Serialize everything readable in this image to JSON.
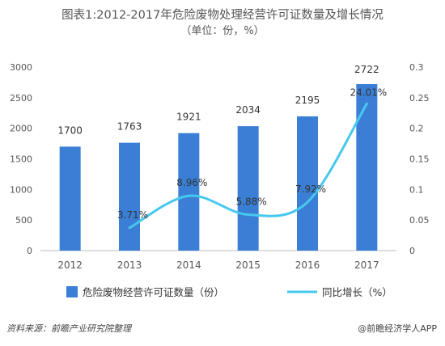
{
  "chart_data": {
    "type": "bar+line",
    "title": "图表1:2012-2017年危险废物处理经营许可证数量及增长情况",
    "subtitle": "（单位：份，%）",
    "categories": [
      "2012",
      "2013",
      "2014",
      "2015",
      "2016",
      "2017"
    ],
    "series": [
      {
        "name": "危险废物经营许可证数量（份）",
        "type": "bar",
        "axis": "left",
        "values": [
          1700,
          1763,
          1921,
          2034,
          2195,
          2722
        ],
        "labels": [
          "1700",
          "1763",
          "1921",
          "2034",
          "2195",
          "2722"
        ]
      },
      {
        "name": "同比增长（%）",
        "type": "line",
        "axis": "right",
        "values": [
          null,
          0.0371,
          0.0896,
          0.0588,
          0.0792,
          0.2401
        ],
        "labels": [
          "",
          "3.71%",
          "8.96%",
          "5.88%",
          "7.92%",
          "24.01%"
        ]
      }
    ],
    "y_left": {
      "ylim": [
        0,
        3000
      ],
      "ticks": [
        "0",
        "500",
        "1000",
        "1500",
        "2000",
        "2500",
        "3000"
      ]
    },
    "y_right": {
      "ylim": [
        0,
        0.3
      ],
      "ticks": [
        "0",
        "0.05",
        "0.1",
        "0.15",
        "0.2",
        "0.25",
        "0.3"
      ]
    },
    "grid": false,
    "legend": "bottom",
    "colors": {
      "bar": "#3a7fd5",
      "line": "#47c8ee",
      "text": "#555555",
      "axis": "#bdbdbd"
    }
  },
  "footer": {
    "source": "资料来源：前瞻产业研究院整理",
    "brand": "@前瞻经济学人APP"
  }
}
